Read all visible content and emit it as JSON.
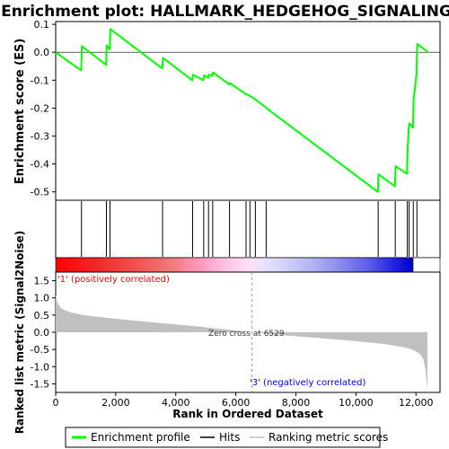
{
  "chart_data": {
    "type": "line",
    "title": "Enrichment plot: HALLMARK_HEDGEHOG_SIGNALING",
    "top_panel": {
      "ylabel": "Enrichment score (ES)",
      "ylim": [
        -0.53,
        0.11
      ],
      "yticks": [
        0.1,
        0.0,
        -0.1,
        -0.2,
        -0.3,
        -0.4,
        -0.5
      ],
      "ytick_labels": [
        "0.1",
        "0.0",
        "-0.1",
        "-0.2",
        "-0.3",
        "-0.4",
        "-0.5"
      ],
      "grid": false,
      "series": [
        {
          "name": "Enrichment profile",
          "color": "#00ff00",
          "x": [
            0,
            850,
            870,
            1680,
            1700,
            1800,
            1820,
            3550,
            3570,
            4550,
            4570,
            4920,
            4940,
            5080,
            5100,
            5220,
            5240,
            5780,
            5800,
            6330,
            6350,
            6460,
            6480,
            6640,
            6660,
            7000,
            7020,
            10730,
            10750,
            11300,
            11320,
            11700,
            11720,
            11760,
            11780,
            11900,
            11920,
            12020,
            12040,
            12380
          ],
          "y": [
            0.0,
            -0.065,
            0.022,
            -0.045,
            0.025,
            0.01,
            0.083,
            -0.058,
            -0.02,
            -0.1,
            -0.08,
            -0.1,
            -0.083,
            -0.092,
            -0.08,
            -0.085,
            -0.072,
            -0.115,
            -0.11,
            -0.15,
            -0.15,
            -0.155,
            -0.158,
            -0.168,
            -0.17,
            -0.197,
            -0.2,
            -0.5,
            -0.437,
            -0.48,
            -0.408,
            -0.435,
            -0.35,
            -0.27,
            -0.255,
            -0.27,
            -0.168,
            -0.077,
            0.03,
            0.002
          ]
        }
      ]
    },
    "hits": {
      "name": "Hits",
      "color": "#000000",
      "positions": [
        860,
        1690,
        1810,
        3560,
        4560,
        4930,
        5090,
        5230,
        5790,
        6340,
        6470,
        6650,
        7010,
        10740,
        11310,
        11710,
        11770,
        11910,
        12030
      ]
    },
    "rank_bar": {
      "positive_label": "'1' (positively correlated)",
      "negative_label": "'3' (negatively correlated)",
      "positive_color": "#ff0000",
      "negative_color": "#0000ff"
    },
    "bottom_panel": {
      "ylabel": "Ranked list metric (Signal2Noise)",
      "xlabel": "Rank in Ordered Dataset",
      "ylim": [
        -1.75,
        1.75
      ],
      "yticks": [
        1.5,
        1.0,
        0.5,
        0.0,
        -0.5,
        -1.0,
        -1.5
      ],
      "ytick_labels": [
        "1.5",
        "1.0",
        "0.5",
        "0.0",
        "-0.5",
        "-1.0",
        "-1.5"
      ],
      "xlim": [
        0,
        12800
      ],
      "xticks": [
        0,
        2000,
        4000,
        6000,
        8000,
        10000,
        12000
      ],
      "xtick_labels": [
        "0",
        "2,000",
        "4,000",
        "6,000",
        "8,000",
        "10,000",
        "12,000"
      ],
      "zero_cross": 6529,
      "zero_cross_label": "Zero cross at 6529",
      "fill_color": "#c0c0c0",
      "metric_x": [
        0,
        50,
        150,
        300,
        500,
        800,
        1200,
        1800,
        2500,
        3500,
        4500,
        5500,
        6529,
        7500,
        8500,
        9500,
        10500,
        11000,
        11500,
        11800,
        12000,
        12150,
        12250,
        12320,
        12380
      ],
      "metric_y": [
        1.1,
        0.88,
        0.72,
        0.64,
        0.58,
        0.52,
        0.47,
        0.41,
        0.35,
        0.27,
        0.19,
        0.1,
        0.0,
        -0.08,
        -0.15,
        -0.22,
        -0.3,
        -0.35,
        -0.42,
        -0.48,
        -0.55,
        -0.65,
        -0.8,
        -1.1,
        -1.7
      ]
    },
    "legend": {
      "placement": "bottom",
      "entries": [
        {
          "label": "Enrichment profile",
          "color": "#00ff00"
        },
        {
          "label": "Hits",
          "color": "#000000"
        },
        {
          "label": "Ranking metric scores",
          "color": "#c0c0c0"
        }
      ]
    }
  }
}
